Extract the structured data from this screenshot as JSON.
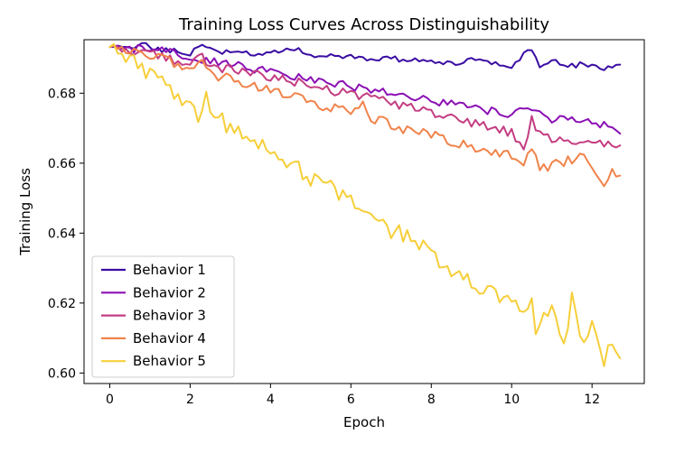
{
  "chart_data": {
    "type": "line",
    "title": "Training Loss Curves Across Distinguishability",
    "xlabel": "Epoch",
    "ylabel": "Training Loss",
    "xlim": [
      -0.64,
      13.3
    ],
    "ylim": [
      0.597,
      0.6953
    ],
    "xticks": [
      0,
      2,
      4,
      6,
      8,
      10,
      12
    ],
    "yticks": [
      0.6,
      0.62,
      0.64,
      0.66,
      0.68
    ],
    "xtick_labels": [
      "0",
      "2",
      "4",
      "6",
      "8",
      "10",
      "12"
    ],
    "ytick_labels": [
      "0.60",
      "0.62",
      "0.64",
      "0.66",
      "0.68"
    ],
    "legend_position": "lower-left",
    "grid": false,
    "x": {
      "start": 0,
      "step": 0.1,
      "count": 128
    },
    "series": [
      {
        "name": "Behavior 1",
        "color": "#3a0ca3",
        "anchors": [
          [
            0,
            0.6932
          ],
          [
            0.4,
            0.6927
          ],
          [
            0.9,
            0.6943
          ],
          [
            1.0,
            0.6928
          ],
          [
            1.5,
            0.6923
          ],
          [
            2.0,
            0.6915
          ],
          [
            2.3,
            0.6943
          ],
          [
            2.6,
            0.6918
          ],
          [
            3.0,
            0.6921
          ],
          [
            3.5,
            0.6913
          ],
          [
            4.0,
            0.6913
          ],
          [
            4.5,
            0.693
          ],
          [
            5.0,
            0.691
          ],
          [
            5.5,
            0.6911
          ],
          [
            6.0,
            0.6905
          ],
          [
            6.5,
            0.6896
          ],
          [
            7.0,
            0.6899
          ],
          [
            7.5,
            0.6893
          ],
          [
            8.0,
            0.6888
          ],
          [
            8.5,
            0.6884
          ],
          [
            9.0,
            0.6893
          ],
          [
            9.5,
            0.6886
          ],
          [
            10.0,
            0.688
          ],
          [
            10.3,
            0.691
          ],
          [
            10.5,
            0.6921
          ],
          [
            10.7,
            0.6876
          ],
          [
            11.0,
            0.6895
          ],
          [
            11.5,
            0.688
          ],
          [
            12.0,
            0.6883
          ],
          [
            12.3,
            0.6865
          ],
          [
            12.7,
            0.6887
          ]
        ],
        "amp": 0.0008
      },
      {
        "name": "Behavior 2",
        "color": "#8b10b4",
        "anchors": [
          [
            0,
            0.6932
          ],
          [
            0.5,
            0.6925
          ],
          [
            0.9,
            0.693
          ],
          [
            1.5,
            0.6915
          ],
          [
            2.0,
            0.6903
          ],
          [
            2.5,
            0.6895
          ],
          [
            3.0,
            0.6885
          ],
          [
            3.5,
            0.6872
          ],
          [
            4.0,
            0.686
          ],
          [
            4.5,
            0.6848
          ],
          [
            5.0,
            0.6838
          ],
          [
            5.5,
            0.6828
          ],
          [
            6.0,
            0.682
          ],
          [
            6.5,
            0.681
          ],
          [
            7.0,
            0.68
          ],
          [
            7.5,
            0.679
          ],
          [
            8.0,
            0.678
          ],
          [
            8.5,
            0.677
          ],
          [
            9.0,
            0.676
          ],
          [
            9.5,
            0.675
          ],
          [
            10.0,
            0.674
          ],
          [
            10.5,
            0.676
          ],
          [
            11.0,
            0.6722
          ],
          [
            11.5,
            0.673
          ],
          [
            12.0,
            0.6712
          ],
          [
            12.5,
            0.6705
          ],
          [
            12.7,
            0.6688
          ]
        ],
        "amp": 0.0012
      },
      {
        "name": "Behavior 3",
        "color": "#c43d82",
        "anchors": [
          [
            0,
            0.6932
          ],
          [
            0.5,
            0.6924
          ],
          [
            1.0,
            0.6912
          ],
          [
            1.5,
            0.6898
          ],
          [
            2.0,
            0.6885
          ],
          [
            2.3,
            0.6905
          ],
          [
            2.5,
            0.6878
          ],
          [
            3.0,
            0.6868
          ],
          [
            3.5,
            0.6855
          ],
          [
            4.0,
            0.6846
          ],
          [
            4.5,
            0.6835
          ],
          [
            5.0,
            0.6823
          ],
          [
            5.5,
            0.6808
          ],
          [
            6.0,
            0.6798
          ],
          [
            6.5,
            0.6787
          ],
          [
            7.0,
            0.6773
          ],
          [
            7.5,
            0.6758
          ],
          [
            8.0,
            0.6745
          ],
          [
            8.5,
            0.6728
          ],
          [
            9.0,
            0.6715
          ],
          [
            9.5,
            0.67
          ],
          [
            10.0,
            0.6688
          ],
          [
            10.3,
            0.664
          ],
          [
            10.5,
            0.673
          ],
          [
            10.7,
            0.668
          ],
          [
            11.0,
            0.6672
          ],
          [
            11.5,
            0.666
          ],
          [
            12.0,
            0.6655
          ],
          [
            12.5,
            0.665
          ],
          [
            12.7,
            0.665
          ]
        ],
        "amp": 0.0013
      },
      {
        "name": "Behavior 4",
        "color": "#f0834a",
        "anchors": [
          [
            0,
            0.6932
          ],
          [
            0.5,
            0.6915
          ],
          [
            1.0,
            0.6905
          ],
          [
            1.5,
            0.6892
          ],
          [
            2.0,
            0.687
          ],
          [
            2.3,
            0.6892
          ],
          [
            2.5,
            0.6855
          ],
          [
            3.0,
            0.684
          ],
          [
            3.5,
            0.6825
          ],
          [
            4.0,
            0.6808
          ],
          [
            4.5,
            0.679
          ],
          [
            5.0,
            0.6775
          ],
          [
            5.5,
            0.676
          ],
          [
            6.0,
            0.6745
          ],
          [
            6.3,
            0.6775
          ],
          [
            6.5,
            0.673
          ],
          [
            7.0,
            0.671
          ],
          [
            7.5,
            0.6693
          ],
          [
            8.0,
            0.668
          ],
          [
            8.5,
            0.6665
          ],
          [
            9.0,
            0.6648
          ],
          [
            9.5,
            0.6635
          ],
          [
            10.0,
            0.6618
          ],
          [
            10.3,
            0.66
          ],
          [
            10.5,
            0.6648
          ],
          [
            10.7,
            0.6588
          ],
          [
            11.0,
            0.6592
          ],
          [
            11.5,
            0.661
          ],
          [
            11.8,
            0.662
          ],
          [
            12.0,
            0.6578
          ],
          [
            12.3,
            0.6528
          ],
          [
            12.5,
            0.6582
          ],
          [
            12.7,
            0.6558
          ]
        ],
        "amp": 0.0015
      },
      {
        "name": "Behavior 5",
        "color": "#f6cf3a",
        "anchors": [
          [
            0,
            0.6932
          ],
          [
            0.5,
            0.6895
          ],
          [
            1.0,
            0.6855
          ],
          [
            1.5,
            0.6812
          ],
          [
            2.0,
            0.6765
          ],
          [
            2.2,
            0.6725
          ],
          [
            2.4,
            0.6785
          ],
          [
            2.6,
            0.6735
          ],
          [
            3.0,
            0.6702
          ],
          [
            3.5,
            0.6665
          ],
          [
            4.0,
            0.6628
          ],
          [
            4.5,
            0.6595
          ],
          [
            5.0,
            0.656
          ],
          [
            5.5,
            0.6528
          ],
          [
            6.0,
            0.649
          ],
          [
            6.5,
            0.6445
          ],
          [
            6.8,
            0.6463
          ],
          [
            7.0,
            0.641
          ],
          [
            7.5,
            0.638
          ],
          [
            8.0,
            0.634
          ],
          [
            8.5,
            0.6298
          ],
          [
            9.0,
            0.626
          ],
          [
            9.5,
            0.6238
          ],
          [
            10.0,
            0.619
          ],
          [
            10.5,
            0.62
          ],
          [
            10.6,
            0.612
          ],
          [
            11.0,
            0.6188
          ],
          [
            11.3,
            0.607
          ],
          [
            11.5,
            0.621
          ],
          [
            11.8,
            0.608
          ],
          [
            12.0,
            0.613
          ],
          [
            12.3,
            0.604
          ],
          [
            12.5,
            0.6075
          ],
          [
            12.6,
            0.6078
          ],
          [
            12.7,
            0.6022
          ]
        ],
        "amp": 0.0025
      }
    ]
  }
}
